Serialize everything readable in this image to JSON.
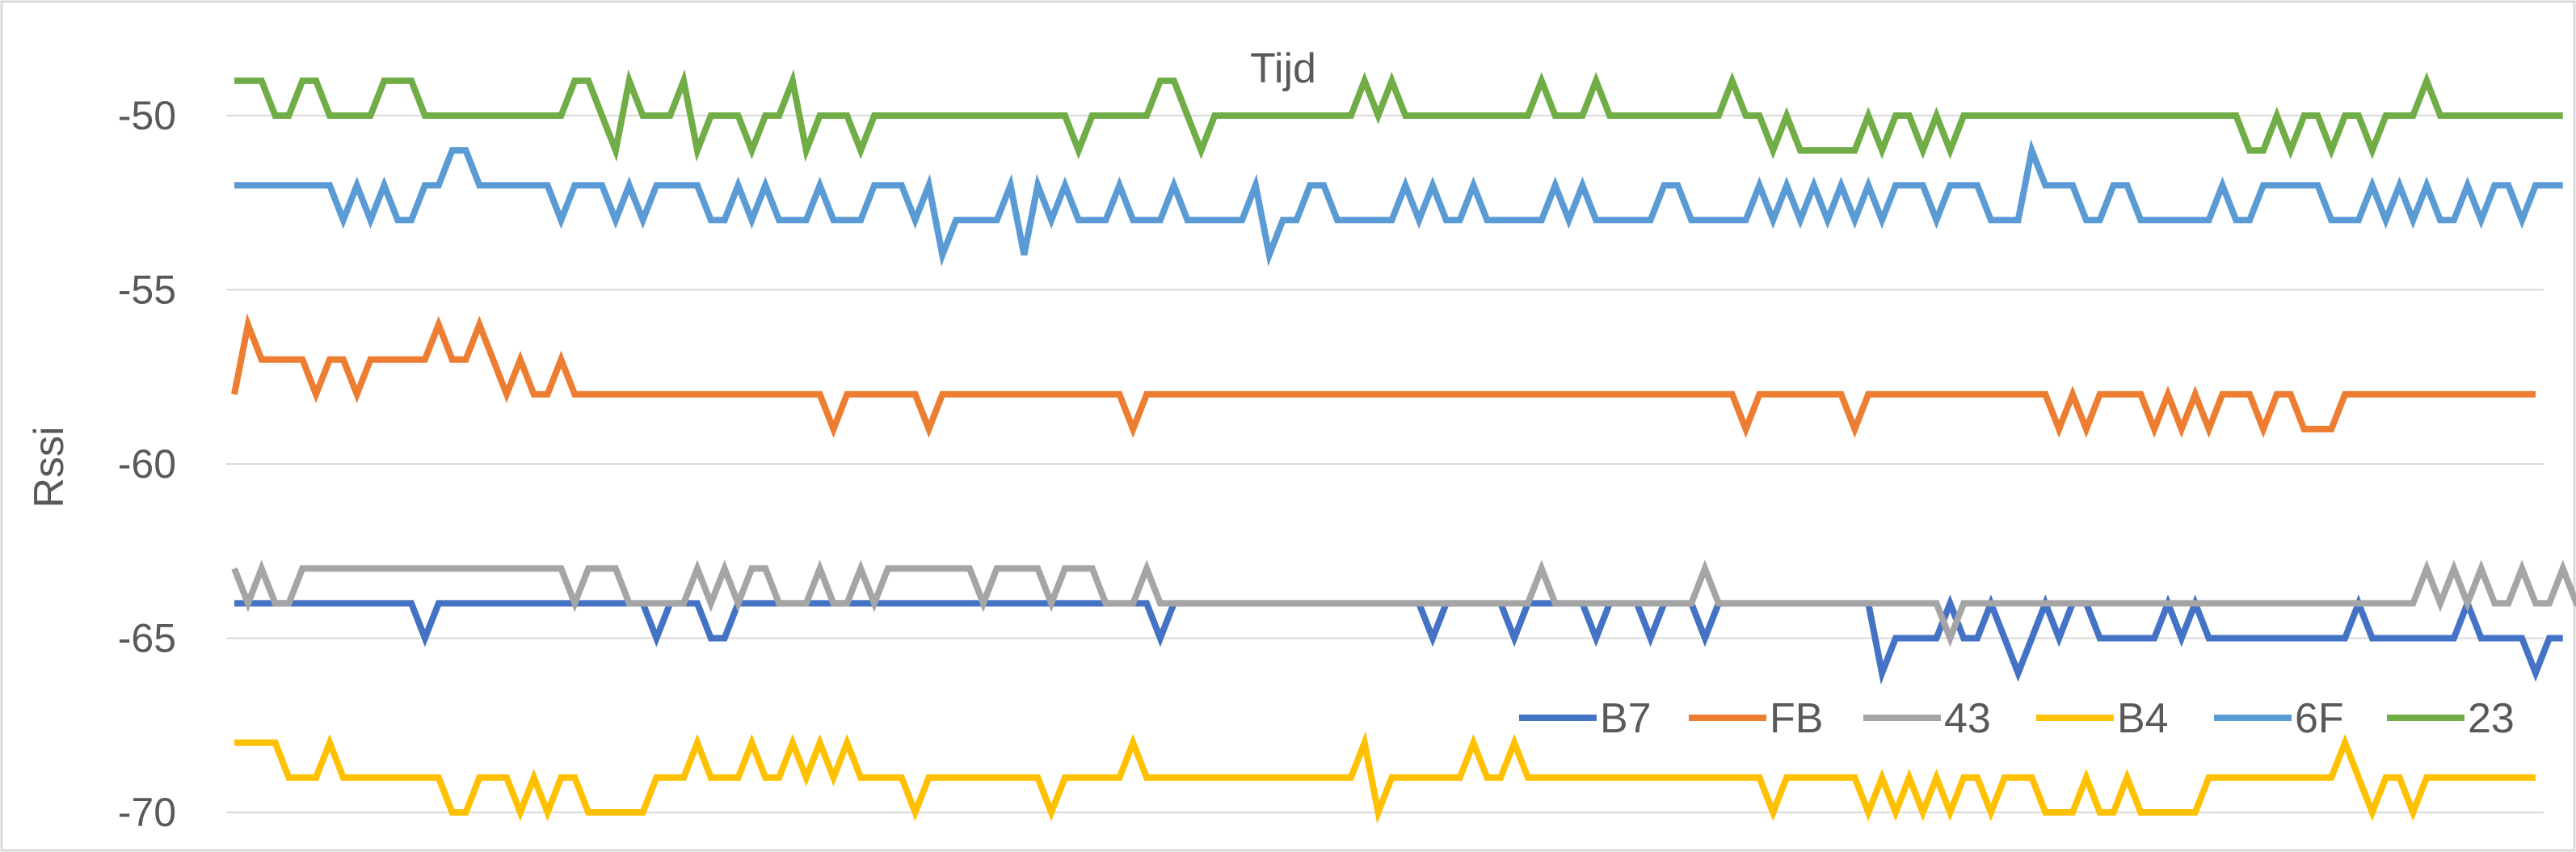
{
  "chart_data": {
    "type": "line",
    "title": "Tijd",
    "xlabel": "",
    "ylabel": "Rssi",
    "ylim": [
      -71,
      -48
    ],
    "yticks": [
      -70,
      -65,
      -60,
      -55,
      -50
    ],
    "grid": true,
    "legend_position": "bottom-right",
    "x_count": 170,
    "series": [
      {
        "name": "B7",
        "color": "#4472c4",
        "values": [
          -64,
          -64,
          -64,
          -64,
          -64,
          -64,
          -64,
          -64,
          -64,
          -64,
          -64,
          -64,
          -64,
          -64,
          -65,
          -64,
          -64,
          -64,
          -64,
          -64,
          -64,
          -64,
          -64,
          -64,
          -64,
          -64,
          -64,
          -64,
          -64,
          -64,
          -64,
          -65,
          -64,
          -64,
          -64,
          -65,
          -65,
          -64,
          -64,
          -64,
          -64,
          -64,
          -64,
          -64,
          -64,
          -64,
          -64,
          -64,
          -64,
          -64,
          -64,
          -64,
          -64,
          -64,
          -64,
          -64,
          -64,
          -64,
          -64,
          -64,
          -64,
          -64,
          -64,
          -64,
          -64,
          -64,
          -64,
          -64,
          -65,
          -64,
          -64,
          -64,
          -64,
          -64,
          -64,
          -64,
          -64,
          -64,
          -64,
          -64,
          -64,
          -64,
          -64,
          -64,
          -64,
          -64,
          -64,
          -64,
          -65,
          -64,
          -64,
          -64,
          -64,
          -64,
          -65,
          -64,
          -64,
          -64,
          -64,
          -64,
          -65,
          -64,
          -64,
          -64,
          -65,
          -64,
          -64,
          -64,
          -65,
          -64,
          -64,
          -64,
          -64,
          -64,
          -64,
          -64,
          -64,
          -64,
          -64,
          -64,
          -64,
          -66,
          -65,
          -65,
          -65,
          -65,
          -64,
          -65,
          -65,
          -64,
          -65,
          -66,
          -65,
          -64,
          -65,
          -64,
          -64,
          -65,
          -65,
          -65,
          -65,
          -65,
          -64,
          -65,
          -64,
          -65,
          -65,
          -65,
          -65,
          -65,
          -65,
          -65,
          -65,
          -65,
          -65,
          -65,
          -64,
          -65,
          -65,
          -65,
          -65,
          -65,
          -65,
          -65,
          -64,
          -65,
          -65,
          -65,
          -65,
          -66,
          -65,
          -65
        ]
      },
      {
        "name": "FB",
        "color": "#ed7d31",
        "values": [
          -58,
          -56,
          -57,
          -57,
          -57,
          -57,
          -58,
          -57,
          -57,
          -58,
          -57,
          -57,
          -57,
          -57,
          -57,
          -56,
          -57,
          -57,
          -56,
          -57,
          -58,
          -57,
          -58,
          -58,
          -57,
          -58,
          -58,
          -58,
          -58,
          -58,
          -58,
          -58,
          -58,
          -58,
          -58,
          -58,
          -58,
          -58,
          -58,
          -58,
          -58,
          -58,
          -58,
          -58,
          -59,
          -58,
          -58,
          -58,
          -58,
          -58,
          -58,
          -59,
          -58,
          -58,
          -58,
          -58,
          -58,
          -58,
          -58,
          -58,
          -58,
          -58,
          -58,
          -58,
          -58,
          -58,
          -59,
          -58,
          -58,
          -58,
          -58,
          -58,
          -58,
          -58,
          -58,
          -58,
          -58,
          -58,
          -58,
          -58,
          -58,
          -58,
          -58,
          -58,
          -58,
          -58,
          -58,
          -58,
          -58,
          -58,
          -58,
          -58,
          -58,
          -58,
          -58,
          -58,
          -58,
          -58,
          -58,
          -58,
          -58,
          -58,
          -58,
          -58,
          -58,
          -58,
          -58,
          -58,
          -58,
          -58,
          -58,
          -59,
          -58,
          -58,
          -58,
          -58,
          -58,
          -58,
          -58,
          -59,
          -58,
          -58,
          -58,
          -58,
          -58,
          -58,
          -58,
          -58,
          -58,
          -58,
          -58,
          -58,
          -58,
          -58,
          -59,
          -58,
          -59,
          -58,
          -58,
          -58,
          -58,
          -59,
          -58,
          -59,
          -58,
          -59,
          -58,
          -58,
          -58,
          -59,
          -58,
          -58,
          -59,
          -59,
          -59,
          -58,
          -58,
          -58,
          -58,
          -58,
          -58,
          -58,
          -58,
          -58,
          -58,
          -58,
          -58,
          -58,
          -58,
          -58
        ]
      },
      {
        "name": "43",
        "color": "#a5a5a5",
        "values": [
          -63,
          -64,
          -63,
          -64,
          -64,
          -63,
          -63,
          -63,
          -63,
          -63,
          -63,
          -63,
          -63,
          -63,
          -63,
          -63,
          -63,
          -63,
          -63,
          -63,
          -63,
          -63,
          -63,
          -63,
          -63,
          -64,
          -63,
          -63,
          -63,
          -64,
          -64,
          -64,
          -64,
          -64,
          -63,
          -64,
          -63,
          -64,
          -63,
          -63,
          -64,
          -64,
          -64,
          -63,
          -64,
          -64,
          -63,
          -64,
          -63,
          -63,
          -63,
          -63,
          -63,
          -63,
          -63,
          -64,
          -63,
          -63,
          -63,
          -63,
          -64,
          -63,
          -63,
          -63,
          -64,
          -64,
          -64,
          -63,
          -64,
          -64,
          -64,
          -64,
          -64,
          -64,
          -64,
          -64,
          -64,
          -64,
          -64,
          -64,
          -64,
          -64,
          -64,
          -64,
          -64,
          -64,
          -64,
          -64,
          -64,
          -64,
          -64,
          -64,
          -64,
          -64,
          -64,
          -64,
          -63,
          -64,
          -64,
          -64,
          -64,
          -64,
          -64,
          -64,
          -64,
          -64,
          -64,
          -64,
          -63,
          -64,
          -64,
          -64,
          -64,
          -64,
          -64,
          -64,
          -64,
          -64,
          -64,
          -64,
          -64,
          -64,
          -64,
          -64,
          -64,
          -64,
          -65,
          -64,
          -64,
          -64,
          -64,
          -64,
          -64,
          -64,
          -64,
          -64,
          -64,
          -64,
          -64,
          -64,
          -64,
          -64,
          -64,
          -64,
          -64,
          -64,
          -64,
          -64,
          -64,
          -64,
          -64,
          -64,
          -64,
          -64,
          -64,
          -64,
          -64,
          -64,
          -64,
          -64,
          -64,
          -63,
          -64,
          -63,
          -64,
          -63,
          -64,
          -64,
          -63,
          -64,
          -64,
          -63,
          -64,
          -64,
          -64
        ]
      },
      {
        "name": "B4",
        "color": "#ffc000",
        "values": [
          -68,
          -68,
          -68,
          -68,
          -69,
          -69,
          -69,
          -68,
          -69,
          -69,
          -69,
          -69,
          -69,
          -69,
          -69,
          -69,
          -70,
          -70,
          -69,
          -69,
          -69,
          -70,
          -69,
          -70,
          -69,
          -69,
          -70,
          -70,
          -70,
          -70,
          -70,
          -69,
          -69,
          -69,
          -68,
          -69,
          -69,
          -69,
          -68,
          -69,
          -69,
          -68,
          -69,
          -68,
          -69,
          -68,
          -69,
          -69,
          -69,
          -69,
          -70,
          -69,
          -69,
          -69,
          -69,
          -69,
          -69,
          -69,
          -69,
          -69,
          -70,
          -69,
          -69,
          -69,
          -69,
          -69,
          -68,
          -69,
          -69,
          -69,
          -69,
          -69,
          -69,
          -69,
          -69,
          -69,
          -69,
          -69,
          -69,
          -69,
          -69,
          -69,
          -69,
          -68,
          -70,
          -69,
          -69,
          -69,
          -69,
          -69,
          -69,
          -68,
          -69,
          -69,
          -68,
          -69,
          -69,
          -69,
          -69,
          -69,
          -69,
          -69,
          -69,
          -69,
          -69,
          -69,
          -69,
          -69,
          -69,
          -69,
          -69,
          -69,
          -69,
          -70,
          -69,
          -69,
          -69,
          -69,
          -69,
          -69,
          -70,
          -69,
          -70,
          -69,
          -70,
          -69,
          -70,
          -69,
          -69,
          -70,
          -69,
          -69,
          -69,
          -70,
          -70,
          -70,
          -69,
          -70,
          -70,
          -69,
          -70,
          -70,
          -70,
          -70,
          -70,
          -69,
          -69,
          -69,
          -69,
          -69,
          -69,
          -69,
          -69,
          -69,
          -69,
          -68,
          -69,
          -70,
          -69,
          -69,
          -70,
          -69,
          -69,
          -69,
          -69,
          -69,
          -69,
          -69,
          -69,
          -69
        ]
      },
      {
        "name": "6F",
        "color": "#5b9bd5",
        "values": [
          -52,
          -52,
          -52,
          -52,
          -52,
          -52,
          -52,
          -52,
          -53,
          -52,
          -53,
          -52,
          -53,
          -53,
          -52,
          -52,
          -51,
          -51,
          -52,
          -52,
          -52,
          -52,
          -52,
          -52,
          -53,
          -52,
          -52,
          -52,
          -53,
          -52,
          -53,
          -52,
          -52,
          -52,
          -52,
          -53,
          -53,
          -52,
          -53,
          -52,
          -53,
          -53,
          -53,
          -52,
          -53,
          -53,
          -53,
          -52,
          -52,
          -52,
          -53,
          -52,
          -54,
          -53,
          -53,
          -53,
          -53,
          -52,
          -54,
          -52,
          -53,
          -52,
          -53,
          -53,
          -53,
          -52,
          -53,
          -53,
          -53,
          -52,
          -53,
          -53,
          -53,
          -53,
          -53,
          -52,
          -54,
          -53,
          -53,
          -52,
          -52,
          -53,
          -53,
          -53,
          -53,
          -53,
          -52,
          -53,
          -52,
          -53,
          -53,
          -52,
          -53,
          -53,
          -53,
          -53,
          -53,
          -52,
          -53,
          -52,
          -53,
          -53,
          -53,
          -53,
          -53,
          -52,
          -52,
          -53,
          -53,
          -53,
          -53,
          -53,
          -52,
          -53,
          -52,
          -53,
          -52,
          -53,
          -52,
          -53,
          -52,
          -53,
          -52,
          -52,
          -52,
          -53,
          -52,
          -52,
          -52,
          -53,
          -53,
          -53,
          -51,
          -52,
          -52,
          -52,
          -53,
          -53,
          -52,
          -52,
          -53,
          -53,
          -53,
          -53,
          -53,
          -53,
          -52,
          -53,
          -53,
          -52,
          -52,
          -52,
          -52,
          -52,
          -53,
          -53,
          -53,
          -52,
          -53,
          -52,
          -53,
          -52,
          -53,
          -53,
          -52,
          -53,
          -52,
          -52,
          -53,
          -52,
          -52,
          -52
        ]
      },
      {
        "name": "23",
        "color": "#70ad47",
        "values": [
          -49,
          -49,
          -49,
          -50,
          -50,
          -49,
          -49,
          -50,
          -50,
          -50,
          -50,
          -49,
          -49,
          -49,
          -50,
          -50,
          -50,
          -50,
          -50,
          -50,
          -50,
          -50,
          -50,
          -50,
          -50,
          -49,
          -49,
          -50,
          -51,
          -49,
          -50,
          -50,
          -50,
          -49,
          -51,
          -50,
          -50,
          -50,
          -51,
          -50,
          -50,
          -49,
          -51,
          -50,
          -50,
          -50,
          -51,
          -50,
          -50,
          -50,
          -50,
          -50,
          -50,
          -50,
          -50,
          -50,
          -50,
          -50,
          -50,
          -50,
          -50,
          -50,
          -51,
          -50,
          -50,
          -50,
          -50,
          -50,
          -49,
          -49,
          -50,
          -51,
          -50,
          -50,
          -50,
          -50,
          -50,
          -50,
          -50,
          -50,
          -50,
          -50,
          -50,
          -49,
          -50,
          -49,
          -50,
          -50,
          -50,
          -50,
          -50,
          -50,
          -50,
          -50,
          -50,
          -50,
          -49,
          -50,
          -50,
          -50,
          -49,
          -50,
          -50,
          -50,
          -50,
          -50,
          -50,
          -50,
          -50,
          -50,
          -49,
          -50,
          -50,
          -51,
          -50,
          -51,
          -51,
          -51,
          -51,
          -51,
          -50,
          -51,
          -50,
          -50,
          -51,
          -50,
          -51,
          -50,
          -50,
          -50,
          -50,
          -50,
          -50,
          -50,
          -50,
          -50,
          -50,
          -50,
          -50,
          -50,
          -50,
          -50,
          -50,
          -50,
          -50,
          -50,
          -50,
          -50,
          -51,
          -51,
          -50,
          -51,
          -50,
          -50,
          -51,
          -50,
          -50,
          -51,
          -50,
          -50,
          -50,
          -49,
          -50,
          -50,
          -50,
          -50,
          -50,
          -50,
          -50,
          -50,
          -50,
          -50
        ]
      }
    ]
  }
}
